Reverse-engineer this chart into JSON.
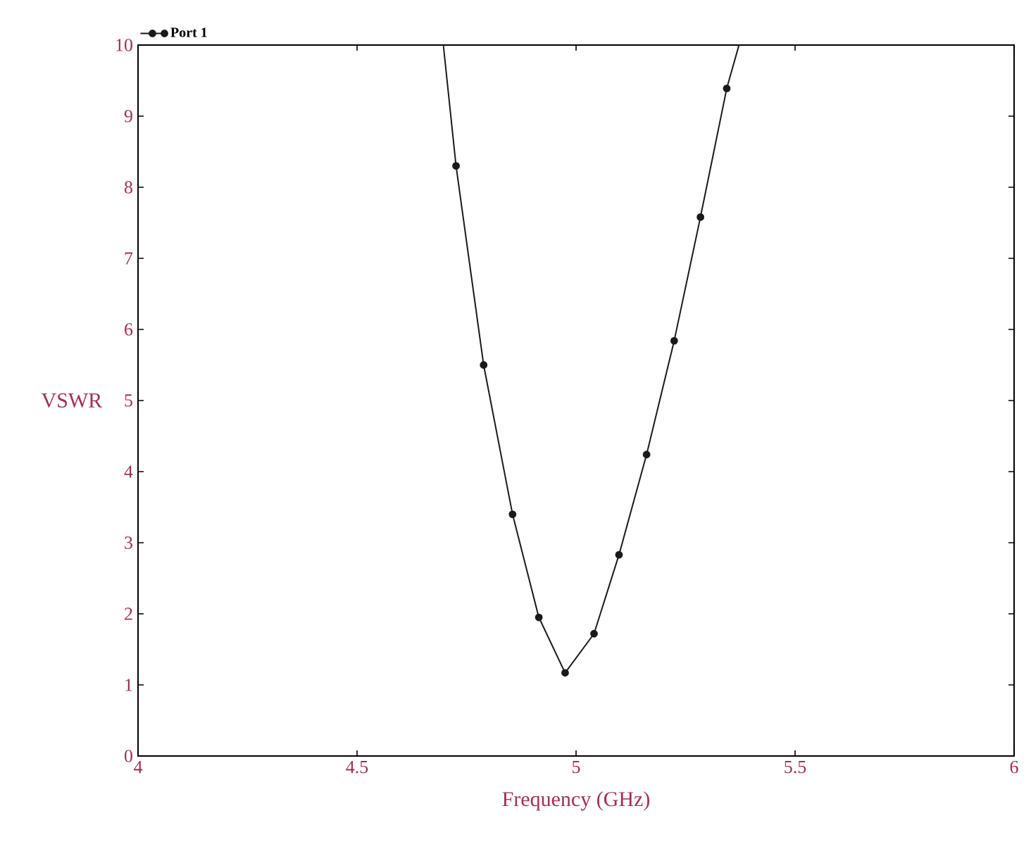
{
  "chart_data": {
    "type": "line",
    "xlabel": "Frequency (GHz)",
    "ylabel": "VSWR",
    "series": [
      {
        "name": "Port 1",
        "color": "#1a1a1a",
        "x": [
          4.697,
          4.726,
          4.789,
          4.855,
          4.915,
          4.975,
          5.041,
          5.098,
          5.161,
          5.224,
          5.284,
          5.344,
          5.372
        ],
        "values": [
          10,
          8.3,
          5.5,
          3.4,
          1.95,
          1.17,
          1.72,
          2.83,
          4.24,
          5.84,
          7.58,
          9.39,
          10
        ]
      }
    ],
    "xlim": [
      4,
      6
    ],
    "ylim": [
      0,
      10
    ],
    "xticks": [
      4,
      4.5,
      5,
      5.5,
      6
    ],
    "yticks": [
      0,
      1,
      2,
      3,
      4,
      5,
      6,
      7,
      8,
      9,
      10
    ],
    "legend": "top left",
    "marker": "circle",
    "line_style": "solid"
  }
}
